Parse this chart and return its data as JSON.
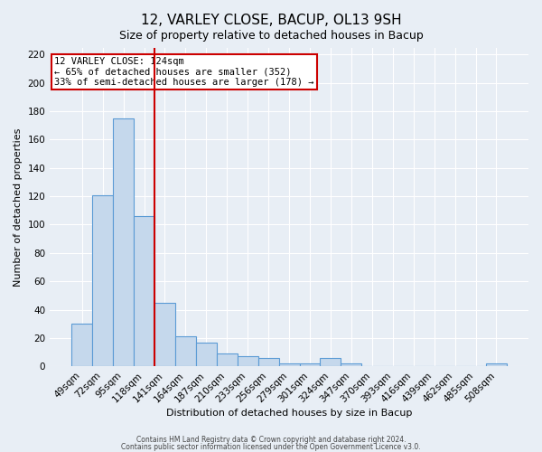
{
  "title": "12, VARLEY CLOSE, BACUP, OL13 9SH",
  "subtitle": "Size of property relative to detached houses in Bacup",
  "xlabel": "Distribution of detached houses by size in Bacup",
  "ylabel": "Number of detached properties",
  "bar_color": "#c5d8ec",
  "bar_edge_color": "#5b9bd5",
  "background_color": "#e8eef5",
  "categories": [
    "49sqm",
    "72sqm",
    "95sqm",
    "118sqm",
    "141sqm",
    "164sqm",
    "187sqm",
    "210sqm",
    "233sqm",
    "256sqm",
    "279sqm",
    "301sqm",
    "324sqm",
    "347sqm",
    "370sqm",
    "393sqm",
    "416sqm",
    "439sqm",
    "462sqm",
    "485sqm",
    "508sqm"
  ],
  "values": [
    30,
    121,
    175,
    106,
    45,
    21,
    17,
    9,
    7,
    6,
    2,
    2,
    6,
    2,
    0,
    0,
    0,
    0,
    0,
    0,
    2
  ],
  "vline_pos": 3.5,
  "vline_color": "#cc0000",
  "annotation_title": "12 VARLEY CLOSE: 124sqm",
  "annotation_line1": "← 65% of detached houses are smaller (352)",
  "annotation_line2": "33% of semi-detached houses are larger (178) →",
  "annotation_box_color": "white",
  "annotation_box_edge_color": "#cc0000",
  "ylim": [
    0,
    225
  ],
  "yticks": [
    0,
    20,
    40,
    60,
    80,
    100,
    120,
    140,
    160,
    180,
    200,
    220
  ],
  "footer1": "Contains HM Land Registry data © Crown copyright and database right 2024.",
  "footer2": "Contains public sector information licensed under the Open Government Licence v3.0.",
  "grid_color": "#ffffff",
  "title_fontsize": 11,
  "subtitle_fontsize": 9,
  "ylabel_fontsize": 8,
  "xlabel_fontsize": 8,
  "tick_fontsize": 7.5,
  "annotation_fontsize": 7.5,
  "footer_fontsize": 5.5
}
